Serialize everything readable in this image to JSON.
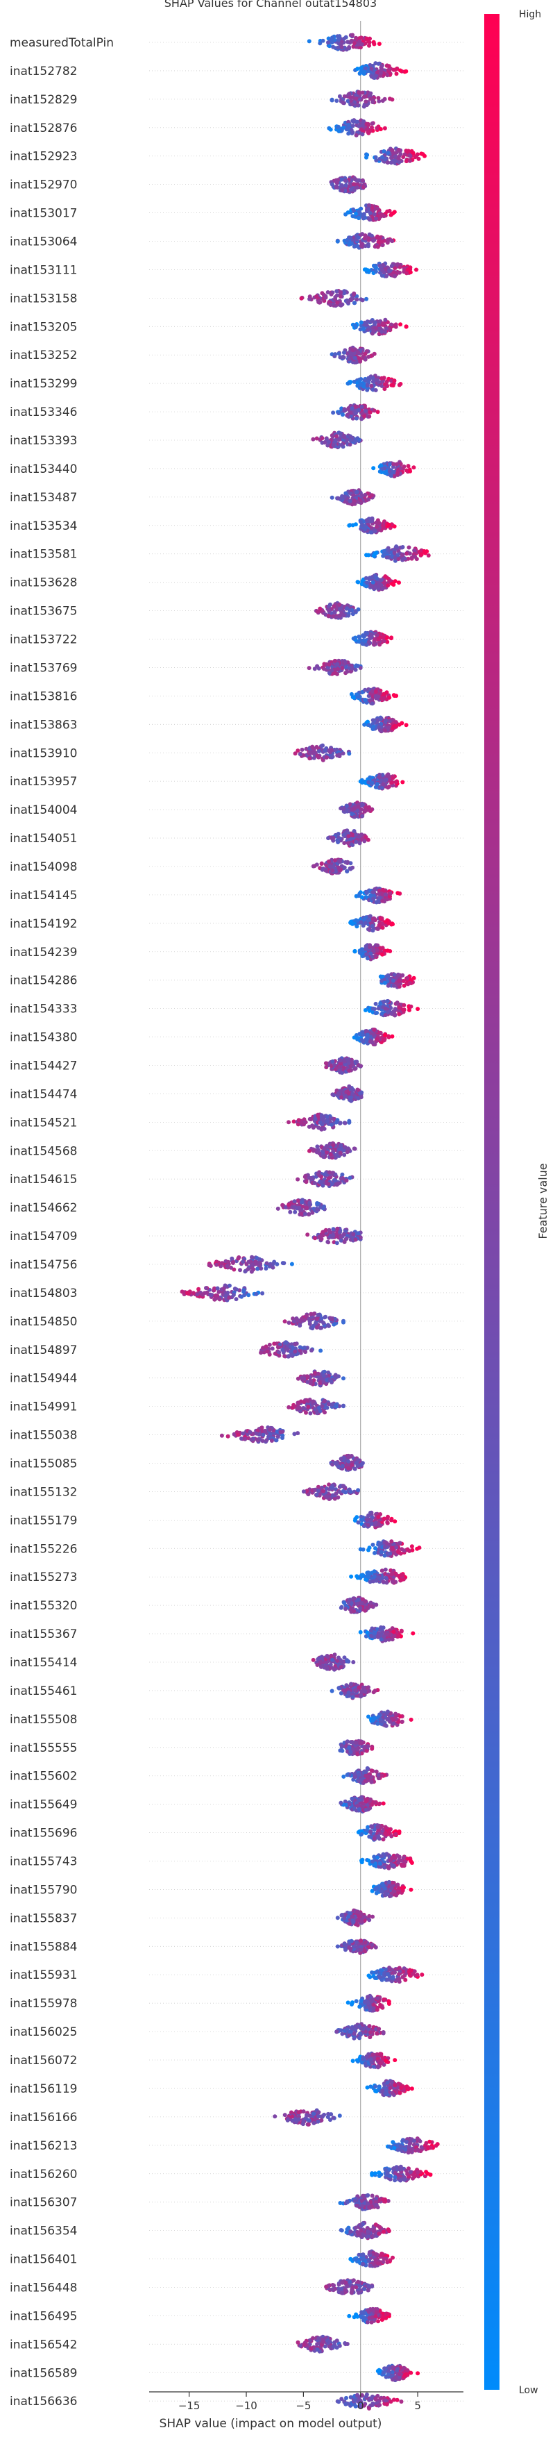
{
  "chart_data": {
    "type": "scatter",
    "title": "SHAP Values for Channel outat154803",
    "xlabel": "SHAP value (impact on model output)",
    "xlim": [
      -18.5,
      9.0
    ],
    "xticks": [
      -15,
      -10,
      -5,
      0,
      5
    ],
    "xtick_labels": [
      "−15",
      "−10",
      "−5",
      "0",
      "5"
    ],
    "colorbar": {
      "label": "Feature value",
      "high_label": "High",
      "low_label": "Low",
      "low_color": "#008bfb",
      "high_color": "#ff0052"
    },
    "series": [
      {
        "feature": "measuredTotalPin",
        "center": -1.2,
        "min": -4.5,
        "max": 3.0,
        "color_trend": 1
      },
      {
        "feature": "inat152782",
        "center": 1.5,
        "min": -0.8,
        "max": 4.5,
        "color_trend": 1
      },
      {
        "feature": "inat152829",
        "center": 0.0,
        "min": -2.5,
        "max": 3.0,
        "color_trend": 0.3
      },
      {
        "feature": "inat152876",
        "center": -0.3,
        "min": -3.5,
        "max": 2.5,
        "color_trend": 1
      },
      {
        "feature": "inat152923",
        "center": 3.0,
        "min": 0.5,
        "max": 7.0,
        "color_trend": 1
      },
      {
        "feature": "inat152970",
        "center": -1.0,
        "min": -3.5,
        "max": 1.0,
        "color_trend": 0.2
      },
      {
        "feature": "inat153017",
        "center": 0.8,
        "min": -2.0,
        "max": 3.0,
        "color_trend": 1
      },
      {
        "feature": "inat153064",
        "center": 0.5,
        "min": -2.0,
        "max": 3.5,
        "color_trend": 0.5
      },
      {
        "feature": "inat153111",
        "center": 2.5,
        "min": 0.0,
        "max": 5.5,
        "color_trend": 1
      },
      {
        "feature": "inat153158",
        "center": -2.0,
        "min": -6.0,
        "max": 0.5,
        "color_trend": -0.3
      },
      {
        "feature": "inat153205",
        "center": 1.5,
        "min": -1.5,
        "max": 4.0,
        "color_trend": 1
      },
      {
        "feature": "inat153252",
        "center": -0.5,
        "min": -2.5,
        "max": 1.5,
        "color_trend": 0.3
      },
      {
        "feature": "inat153299",
        "center": 1.2,
        "min": -2.0,
        "max": 3.5,
        "color_trend": 1
      },
      {
        "feature": "inat153346",
        "center": -0.3,
        "min": -3.0,
        "max": 1.5,
        "color_trend": 0.5
      },
      {
        "feature": "inat153393",
        "center": -2.0,
        "min": -4.5,
        "max": 0.0,
        "color_trend": -0.2
      },
      {
        "feature": "inat153440",
        "center": 3.0,
        "min": 1.0,
        "max": 5.0,
        "color_trend": 1
      },
      {
        "feature": "inat153487",
        "center": -0.5,
        "min": -2.5,
        "max": 1.5,
        "color_trend": 0.3
      },
      {
        "feature": "inat153534",
        "center": 1.0,
        "min": -1.0,
        "max": 3.5,
        "color_trend": 1
      },
      {
        "feature": "inat153581",
        "center": 3.5,
        "min": 0.5,
        "max": 7.5,
        "color_trend": 1
      },
      {
        "feature": "inat153628",
        "center": 1.5,
        "min": -0.5,
        "max": 3.5,
        "color_trend": 1
      },
      {
        "feature": "inat153675",
        "center": -2.0,
        "min": -4.5,
        "max": 0.0,
        "color_trend": -0.2
      },
      {
        "feature": "inat153722",
        "center": 1.0,
        "min": -1.0,
        "max": 3.0,
        "color_trend": 1
      },
      {
        "feature": "inat153769",
        "center": -2.0,
        "min": -4.5,
        "max": 0.0,
        "color_trend": -0.2
      },
      {
        "feature": "inat153816",
        "center": 1.0,
        "min": -1.0,
        "max": 3.5,
        "color_trend": 1
      },
      {
        "feature": "inat153863",
        "center": 2.0,
        "min": 0.0,
        "max": 4.0,
        "color_trend": 1
      },
      {
        "feature": "inat153910",
        "center": -3.5,
        "min": -6.5,
        "max": -1.0,
        "color_trend": -0.3
      },
      {
        "feature": "inat153957",
        "center": 2.0,
        "min": 0.0,
        "max": 4.5,
        "color_trend": 1
      },
      {
        "feature": "inat154004",
        "center": -0.3,
        "min": -2.0,
        "max": 1.5,
        "color_trend": 0.3
      },
      {
        "feature": "inat154051",
        "center": -1.0,
        "min": -3.5,
        "max": 1.0,
        "color_trend": 0.2
      },
      {
        "feature": "inat154098",
        "center": -2.0,
        "min": -4.5,
        "max": 0.0,
        "color_trend": -0.2
      },
      {
        "feature": "inat154145",
        "center": 1.5,
        "min": -0.5,
        "max": 4.0,
        "color_trend": 1
      },
      {
        "feature": "inat154192",
        "center": 1.0,
        "min": -1.0,
        "max": 3.5,
        "color_trend": 1
      },
      {
        "feature": "inat154239",
        "center": 1.0,
        "min": -0.5,
        "max": 3.0,
        "color_trend": 1
      },
      {
        "feature": "inat154286",
        "center": 3.0,
        "min": 0.5,
        "max": 5.0,
        "color_trend": 1
      },
      {
        "feature": "inat154333",
        "center": 2.5,
        "min": 0.0,
        "max": 5.0,
        "color_trend": 1
      },
      {
        "feature": "inat154380",
        "center": 1.0,
        "min": -1.0,
        "max": 3.0,
        "color_trend": 1
      },
      {
        "feature": "inat154427",
        "center": -1.5,
        "min": -3.5,
        "max": 0.5,
        "color_trend": 0
      },
      {
        "feature": "inat154474",
        "center": -1.0,
        "min": -3.0,
        "max": 0.5,
        "color_trend": 0
      },
      {
        "feature": "inat154521",
        "center": -3.5,
        "min": -6.5,
        "max": -1.0,
        "color_trend": -0.3
      },
      {
        "feature": "inat154568",
        "center": -2.5,
        "min": -5.0,
        "max": 0.0,
        "color_trend": -0.2
      },
      {
        "feature": "inat154615",
        "center": -3.0,
        "min": -5.5,
        "max": 0.5,
        "color_trend": -0.2
      },
      {
        "feature": "inat154662",
        "center": -5.0,
        "min": -7.5,
        "max": -2.5,
        "color_trend": -0.3
      },
      {
        "feature": "inat154709",
        "center": -2.0,
        "min": -6.5,
        "max": 0.0,
        "color_trend": -0.2
      },
      {
        "feature": "inat154756",
        "center": -10.0,
        "min": -13.5,
        "max": -6.0,
        "color_trend": -0.5
      },
      {
        "feature": "inat154803",
        "center": -12.0,
        "min": -16.0,
        "max": -8.0,
        "color_trend": -0.5
      },
      {
        "feature": "inat154850",
        "center": -4.0,
        "min": -7.0,
        "max": -1.5,
        "color_trend": -0.3
      },
      {
        "feature": "inat154897",
        "center": -6.5,
        "min": -10.5,
        "max": -3.5,
        "color_trend": -0.4
      },
      {
        "feature": "inat154944",
        "center": -3.5,
        "min": -6.0,
        "max": -1.5,
        "color_trend": -0.3
      },
      {
        "feature": "inat154991",
        "center": -4.0,
        "min": -7.5,
        "max": -1.5,
        "color_trend": -0.3
      },
      {
        "feature": "inat155038",
        "center": -8.5,
        "min": -13.0,
        "max": -5.5,
        "color_trend": -0.4
      },
      {
        "feature": "inat155085",
        "center": -1.0,
        "min": -3.0,
        "max": 0.5,
        "color_trend": 0
      },
      {
        "feature": "inat155132",
        "center": -2.5,
        "min": -6.0,
        "max": 0.0,
        "color_trend": -0.2
      },
      {
        "feature": "inat155179",
        "center": 1.0,
        "min": -1.5,
        "max": 3.0,
        "color_trend": 1
      },
      {
        "feature": "inat155226",
        "center": 2.5,
        "min": 0.0,
        "max": 5.5,
        "color_trend": 1
      },
      {
        "feature": "inat155273",
        "center": 2.0,
        "min": -1.0,
        "max": 4.5,
        "color_trend": 1
      },
      {
        "feature": "inat155320",
        "center": -0.3,
        "min": -2.5,
        "max": 1.5,
        "color_trend": 0.3
      },
      {
        "feature": "inat155367",
        "center": 2.0,
        "min": 0.0,
        "max": 5.0,
        "color_trend": 1
      },
      {
        "feature": "inat155414",
        "center": -2.5,
        "min": -5.0,
        "max": -0.5,
        "color_trend": -0.2
      },
      {
        "feature": "inat155461",
        "center": -0.5,
        "min": -2.5,
        "max": 1.5,
        "color_trend": 0.3
      },
      {
        "feature": "inat155508",
        "center": 2.5,
        "min": 0.0,
        "max": 5.0,
        "color_trend": 1
      },
      {
        "feature": "inat155555",
        "center": -0.5,
        "min": -3.0,
        "max": 1.0,
        "color_trend": 0.3
      },
      {
        "feature": "inat155602",
        "center": 0.5,
        "min": -1.5,
        "max": 2.5,
        "color_trend": 0.5
      },
      {
        "feature": "inat155649",
        "center": 0.0,
        "min": -2.0,
        "max": 2.0,
        "color_trend": 0.5
      },
      {
        "feature": "inat155696",
        "center": 1.5,
        "min": -0.5,
        "max": 4.0,
        "color_trend": 1
      },
      {
        "feature": "inat155743",
        "center": 2.5,
        "min": -1.0,
        "max": 4.5,
        "color_trend": 1
      },
      {
        "feature": "inat155790",
        "center": 2.5,
        "min": 0.5,
        "max": 4.5,
        "color_trend": 1
      },
      {
        "feature": "inat155837",
        "center": -0.5,
        "min": -2.0,
        "max": 1.5,
        "color_trend": 0.3
      },
      {
        "feature": "inat155884",
        "center": -0.3,
        "min": -2.0,
        "max": 1.5,
        "color_trend": 0.3
      },
      {
        "feature": "inat155931",
        "center": 3.0,
        "min": 0.5,
        "max": 6.5,
        "color_trend": 1
      },
      {
        "feature": "inat155978",
        "center": 1.0,
        "min": -1.5,
        "max": 2.5,
        "color_trend": 1
      },
      {
        "feature": "inat156025",
        "center": 0.0,
        "min": -3.0,
        "max": 2.0,
        "color_trend": 0.3
      },
      {
        "feature": "inat156072",
        "center": 1.2,
        "min": -1.0,
        "max": 3.0,
        "color_trend": 1
      },
      {
        "feature": "inat156119",
        "center": 2.5,
        "min": 0.5,
        "max": 4.5,
        "color_trend": 1
      },
      {
        "feature": "inat156166",
        "center": -4.5,
        "min": -7.5,
        "max": -1.0,
        "color_trend": -0.3
      },
      {
        "feature": "inat156213",
        "center": 4.5,
        "min": 2.0,
        "max": 7.5,
        "color_trend": 1
      },
      {
        "feature": "inat156260",
        "center": 3.5,
        "min": 1.0,
        "max": 7.0,
        "color_trend": 1
      },
      {
        "feature": "inat156307",
        "center": 0.5,
        "min": -2.5,
        "max": 2.5,
        "color_trend": 0.5
      },
      {
        "feature": "inat156354",
        "center": 0.5,
        "min": -2.5,
        "max": 2.5,
        "color_trend": 0.5
      },
      {
        "feature": "inat156401",
        "center": 1.0,
        "min": -1.0,
        "max": 3.5,
        "color_trend": 1
      },
      {
        "feature": "inat156448",
        "center": -1.0,
        "min": -4.0,
        "max": 1.0,
        "color_trend": 0
      },
      {
        "feature": "inat156495",
        "center": 1.0,
        "min": -1.0,
        "max": 2.5,
        "color_trend": 1
      },
      {
        "feature": "inat156542",
        "center": -3.5,
        "min": -6.0,
        "max": -1.0,
        "color_trend": -0.3
      },
      {
        "feature": "inat156589",
        "center": 3.0,
        "min": 1.0,
        "max": 5.0,
        "color_trend": 1
      },
      {
        "feature": "inat156636",
        "center": 0.5,
        "min": -2.0,
        "max": 4.0,
        "color_trend": 0.5
      }
    ]
  }
}
